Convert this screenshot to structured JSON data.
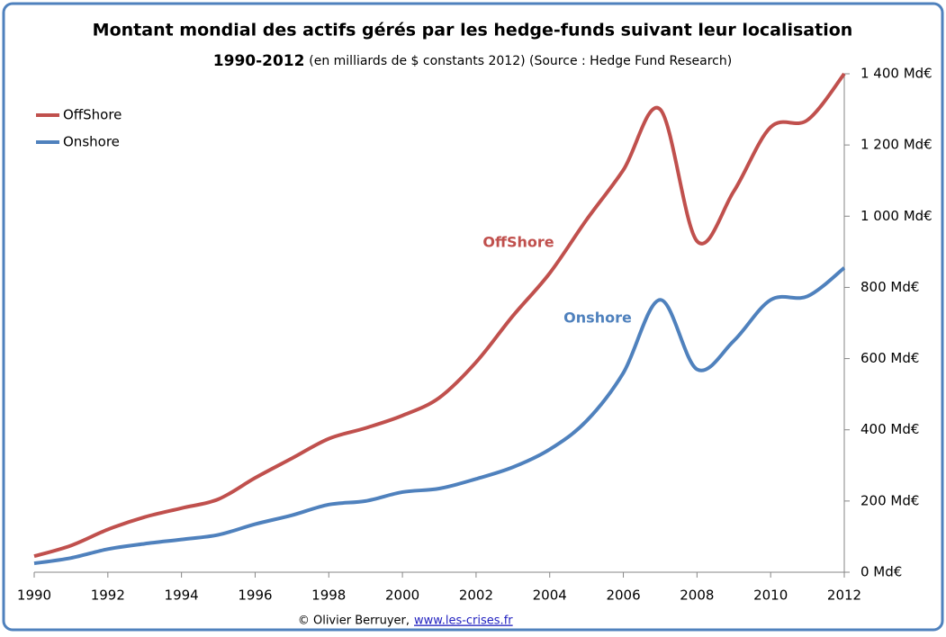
{
  "chart_data": {
    "type": "line",
    "title": "Montant mondial des actifs gérés par les hedge-funds suivant leur localisation",
    "subtitle_bold": "1990-2012",
    "subtitle": "(en milliards de $ constants 2012) (Source : Hedge Fund Research)",
    "x": [
      1990,
      1991,
      1992,
      1993,
      1994,
      1995,
      1996,
      1997,
      1998,
      1999,
      2000,
      2001,
      2002,
      2003,
      2004,
      2005,
      2006,
      2007,
      2008,
      2009,
      2010,
      2011,
      2012
    ],
    "series": [
      {
        "name": "OffShore",
        "color": "#c0504d",
        "values": [
          45,
          75,
          120,
          155,
          180,
          205,
          265,
          320,
          375,
          405,
          440,
          490,
          590,
          720,
          840,
          990,
          1130,
          1300,
          930,
          1070,
          1250,
          1270,
          1400
        ]
      },
      {
        "name": "Onshore",
        "color": "#4f81bd",
        "values": [
          25,
          40,
          65,
          80,
          92,
          105,
          135,
          160,
          190,
          200,
          225,
          235,
          262,
          295,
          345,
          425,
          560,
          765,
          570,
          650,
          765,
          775,
          855
        ]
      }
    ],
    "annotations": [
      "OffShore",
      "Onshore"
    ],
    "xlim": [
      1990,
      2012
    ],
    "xticks": [
      1990,
      1992,
      1994,
      1996,
      1998,
      2000,
      2002,
      2004,
      2006,
      2008,
      2010,
      2012
    ],
    "ylim": [
      0,
      1400
    ],
    "yticks": [
      {
        "value": 0,
        "label": "0 Md€"
      },
      {
        "value": 200,
        "label": "200 Md€"
      },
      {
        "value": 400,
        "label": "400 Md€"
      },
      {
        "value": 600,
        "label": "600 Md€"
      },
      {
        "value": 800,
        "label": "800 Md€"
      },
      {
        "value": 1000,
        "label": "1 000 Md€"
      },
      {
        "value": 1200,
        "label": "1 200 Md€"
      },
      {
        "value": 1400,
        "label": "1 400 Md€"
      }
    ],
    "legend": "top-left",
    "grid": false,
    "source": "© Olivier Berruyer,",
    "source_link": "www.les-crises.fr"
  }
}
